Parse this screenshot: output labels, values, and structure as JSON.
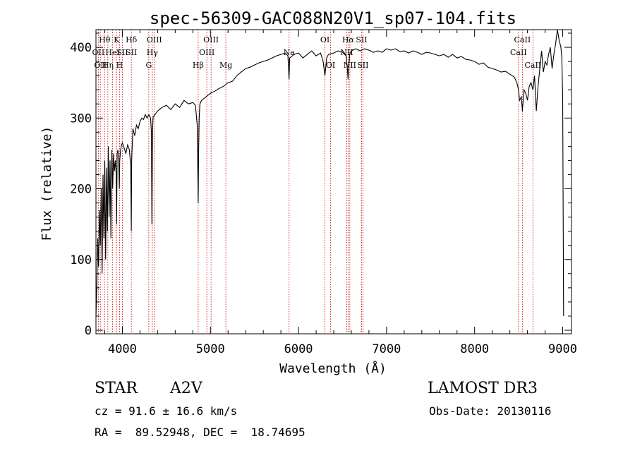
{
  "chart_data": {
    "type": "line",
    "title": "spec-56309-GAC088N20V1_sp07-104.fits",
    "xlabel": "Wavelength (Å)",
    "ylabel": "Flux (relative)",
    "xlim": [
      3700,
      9100
    ],
    "ylim": [
      -5,
      425
    ],
    "xticks": [
      4000,
      5000,
      6000,
      7000,
      8000,
      9000
    ],
    "xtick_labels": [
      "4000",
      "5000",
      "6000",
      "7000",
      "8000",
      "9000"
    ],
    "yticks": [
      0,
      100,
      200,
      300,
      400
    ],
    "ytick_labels": [
      "0",
      "100",
      "200",
      "300",
      "400"
    ],
    "series": [
      {
        "name": "spectrum",
        "x": [
          3700,
          3710,
          3720,
          3730,
          3740,
          3750,
          3760,
          3770,
          3780,
          3790,
          3800,
          3810,
          3820,
          3830,
          3840,
          3850,
          3860,
          3870,
          3880,
          3890,
          3900,
          3910,
          3920,
          3930,
          3935,
          3940,
          3950,
          3960,
          3965,
          3970,
          3980,
          3990,
          4000,
          4020,
          4040,
          4060,
          4080,
          4095,
          4101,
          4105,
          4120,
          4140,
          4160,
          4180,
          4200,
          4220,
          4240,
          4260,
          4280,
          4300,
          4320,
          4330,
          4335,
          4340,
          4345,
          4350,
          4370,
          4400,
          4450,
          4500,
          4550,
          4600,
          4650,
          4700,
          4750,
          4800,
          4830,
          4850,
          4856,
          4861,
          4866,
          4872,
          4880,
          4900,
          4950,
          5000,
          5050,
          5100,
          5150,
          5200,
          5250,
          5300,
          5350,
          5400,
          5450,
          5500,
          5550,
          5600,
          5650,
          5700,
          5750,
          5800,
          5850,
          5880,
          5893,
          5900,
          5950,
          6000,
          6050,
          6100,
          6150,
          6200,
          6250,
          6280,
          6300,
          6320,
          6340,
          6400,
          6450,
          6500,
          6540,
          6555,
          6563,
          6570,
          6580,
          6600,
          6650,
          6700,
          6750,
          6800,
          6850,
          6900,
          6950,
          7000,
          7050,
          7100,
          7150,
          7200,
          7250,
          7300,
          7350,
          7400,
          7450,
          7500,
          7550,
          7600,
          7650,
          7700,
          7750,
          7800,
          7850,
          7900,
          7950,
          8000,
          8050,
          8100,
          8150,
          8200,
          8250,
          8300,
          8350,
          8400,
          8450,
          8480,
          8498,
          8510,
          8530,
          8542,
          8560,
          8580,
          8600,
          8620,
          8640,
          8662,
          8680,
          8700,
          8720,
          8740,
          8760,
          8780,
          8800,
          8820,
          8840,
          8860,
          8880,
          8900,
          8920,
          8940,
          8960,
          8980,
          8990,
          9000,
          9010
        ],
        "y": [
          20,
          60,
          130,
          90,
          170,
          120,
          200,
          80,
          220,
          130,
          240,
          100,
          230,
          140,
          260,
          160,
          240,
          130,
          255,
          200,
          250,
          225,
          240,
          220,
          150,
          250,
          255,
          230,
          200,
          240,
          255,
          262,
          265,
          258,
          250,
          262,
          255,
          232,
          140,
          240,
          285,
          275,
          290,
          285,
          295,
          300,
          298,
          305,
          300,
          305,
          300,
          280,
          150,
          240,
          290,
          302,
          305,
          310,
          315,
          318,
          312,
          320,
          315,
          325,
          320,
          322,
          318,
          290,
          230,
          180,
          250,
          300,
          320,
          325,
          330,
          335,
          338,
          342,
          345,
          350,
          352,
          360,
          365,
          370,
          372,
          375,
          378,
          380,
          382,
          385,
          388,
          390,
          392,
          388,
          355,
          385,
          390,
          392,
          385,
          390,
          395,
          388,
          392,
          380,
          360,
          385,
          390,
          392,
          395,
          393,
          388,
          370,
          355,
          370,
          390,
          395,
          398,
          395,
          398,
          396,
          393,
          395,
          393,
          398,
          396,
          398,
          394,
          395,
          392,
          395,
          393,
          390,
          393,
          392,
          390,
          388,
          390,
          386,
          390,
          385,
          387,
          383,
          382,
          380,
          376,
          378,
          372,
          370,
          368,
          365,
          366,
          362,
          358,
          350,
          340,
          325,
          330,
          310,
          340,
          335,
          325,
          345,
          350,
          340,
          360,
          310,
          345,
          370,
          395,
          365,
          380,
          375,
          390,
          400,
          370,
          390,
          405,
          425,
          410,
          400,
          385,
          330,
          20
        ]
      }
    ],
    "line_markers": [
      {
        "wavelength": 3727,
        "label": "OII",
        "row": 2
      },
      {
        "wavelength": 3750,
        "label": "OII",
        "row": 3
      },
      {
        "wavelength": 3798,
        "label": "Hθ",
        "row": 1
      },
      {
        "wavelength": 3835,
        "label": "Hη",
        "row": 3
      },
      {
        "wavelength": 3889,
        "label": "HeI",
        "row": 2
      },
      {
        "wavelength": 3934,
        "label": "K",
        "row": 1
      },
      {
        "wavelength": 3968,
        "label": "H",
        "row": 3
      },
      {
        "wavelength": 4000,
        "label": "SII",
        "row": 2
      },
      {
        "wavelength": 4102,
        "label": "Hδ",
        "row": 1
      },
      {
        "wavelength": 4102,
        "label": "SII",
        "row": 2
      },
      {
        "wavelength": 4300,
        "label": "G",
        "row": 3
      },
      {
        "wavelength": 4340,
        "label": "Hγ",
        "row": 2
      },
      {
        "wavelength": 4363,
        "label": "OIII",
        "row": 1
      },
      {
        "wavelength": 4861,
        "label": "Hβ",
        "row": 3
      },
      {
        "wavelength": 4959,
        "label": "OIII",
        "row": 2
      },
      {
        "wavelength": 5007,
        "label": "OIII",
        "row": 1
      },
      {
        "wavelength": 5175,
        "label": "Mg",
        "row": 3
      },
      {
        "wavelength": 5893,
        "label": "Na",
        "row": 2
      },
      {
        "wavelength": 6300,
        "label": "OI",
        "row": 1
      },
      {
        "wavelength": 6364,
        "label": "OI",
        "row": 3
      },
      {
        "wavelength": 6548,
        "label": "NII",
        "row": 2
      },
      {
        "wavelength": 6563,
        "label": "Hα",
        "row": 1
      },
      {
        "wavelength": 6583,
        "label": "NII",
        "row": 3
      },
      {
        "wavelength": 6716,
        "label": "SII",
        "row": 1
      },
      {
        "wavelength": 6731,
        "label": "SII",
        "row": 3
      },
      {
        "wavelength": 8498,
        "label": "CaII",
        "row": 2
      },
      {
        "wavelength": 8542,
        "label": "CaII",
        "row": 1
      },
      {
        "wavelength": 8662,
        "label": "CaII",
        "row": 3
      }
    ],
    "line_marker_color": "#cc0000",
    "grid": false,
    "legend": "none"
  },
  "info": {
    "object_class": "STAR",
    "subclass": "A2V",
    "survey": "LAMOST DR3",
    "redshift_text": "cz = 91.6 ± 16.6 km/s",
    "obs_date_text": "Obs-Date: 20130116",
    "coords_text": "RA =  89.52948, DEC =  18.74695"
  }
}
